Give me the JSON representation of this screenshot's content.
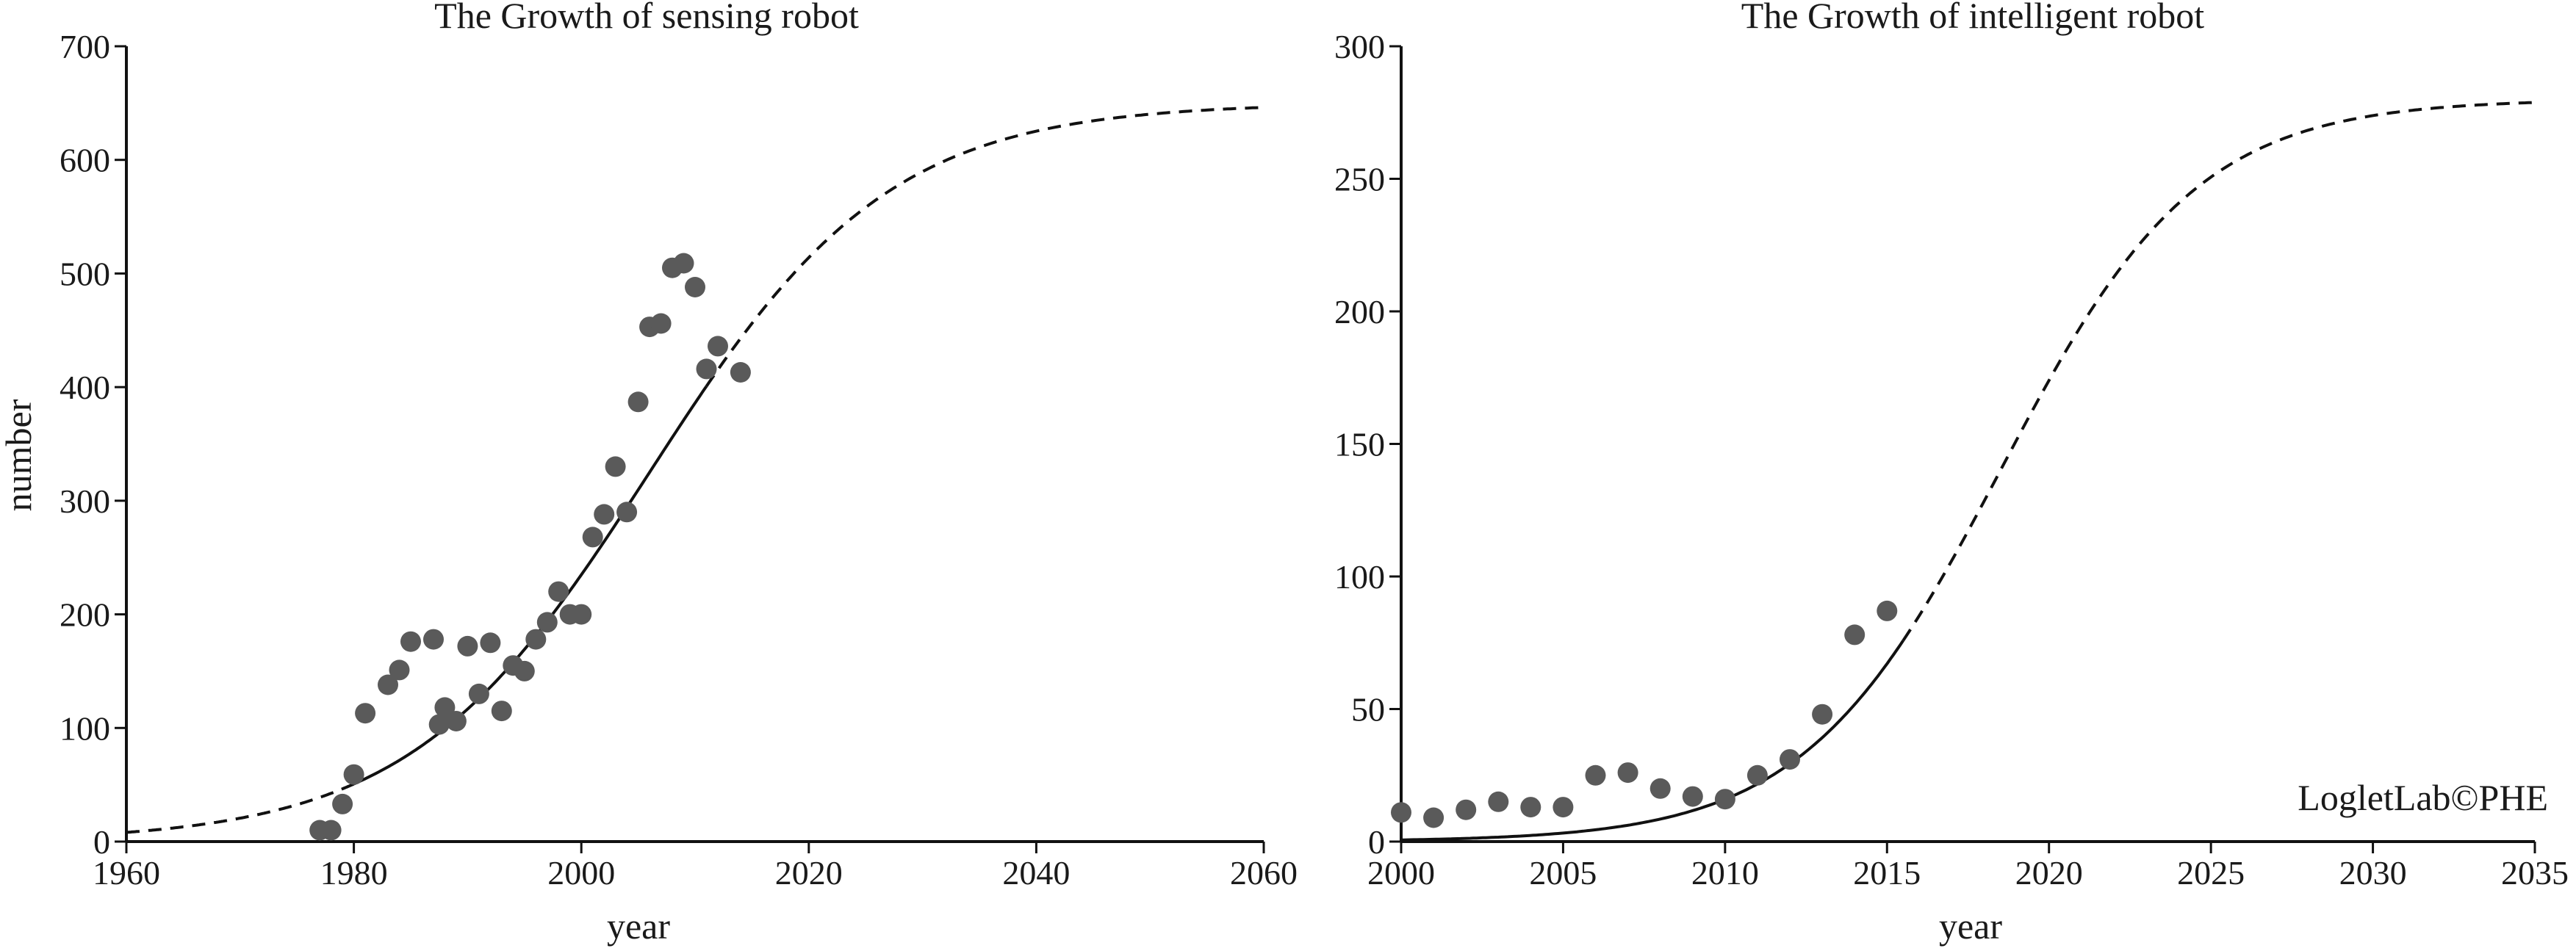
{
  "chart_data": [
    {
      "type": "scatter",
      "title": "The Growth of sensing robot",
      "xlabel": "year",
      "ylabel": "number",
      "xlim": [
        1960,
        2060
      ],
      "ylim": [
        0,
        700
      ],
      "xticks": [
        1960,
        1980,
        2000,
        2020,
        2040,
        2060
      ],
      "yticks": [
        0,
        100,
        200,
        300,
        400,
        500,
        600,
        700
      ],
      "xtick_labels": [
        "1960",
        "1980",
        "2000",
        "2020",
        "2040",
        "2060"
      ],
      "ytick_labels": [
        "0",
        "100",
        "200",
        "300",
        "400",
        "500",
        "600",
        "700"
      ],
      "grid": false,
      "series": [
        {
          "kind": "points",
          "x": [
            1977,
            1978,
            1979,
            1980,
            1981,
            1983,
            1984,
            1985,
            1987,
            1987.5,
            1988,
            1989,
            1990,
            1991,
            1992,
            1993,
            1994,
            1995,
            1996,
            1997,
            1998,
            1999,
            2000,
            2001,
            2002,
            2003,
            2004,
            2005,
            2006,
            2007,
            2008,
            2009,
            2010,
            2011,
            2012,
            2014
          ],
          "y": [
            10,
            10,
            33,
            59,
            113,
            138,
            151,
            176,
            178,
            103,
            118,
            106,
            172,
            130,
            175,
            115,
            155,
            150,
            178,
            193,
            220,
            200,
            200,
            268,
            288,
            330,
            290,
            387,
            453,
            456,
            505,
            509,
            488,
            416,
            436,
            413
          ]
        },
        {
          "kind": "fit",
          "label": "logistic fit",
          "style": "solid",
          "x_start": 1980,
          "x_end": 2011,
          "K": 650,
          "midpoint": 2006,
          "rate": 0.095
        },
        {
          "kind": "projection",
          "label": "logistic projection",
          "style": "dashed",
          "segments": [
            [
              1960,
              1980
            ],
            [
              2011,
              2060
            ]
          ],
          "K": 650,
          "midpoint": 2006,
          "rate": 0.095
        }
      ]
    },
    {
      "type": "scatter",
      "title": "The Growth of intelligent robot",
      "xlabel": "year",
      "ylabel": "",
      "xlim": [
        2000,
        2035
      ],
      "ylim": [
        0,
        300
      ],
      "xticks": [
        2000,
        2005,
        2010,
        2015,
        2020,
        2025,
        2030,
        2035
      ],
      "yticks": [
        0,
        50,
        100,
        150,
        200,
        250,
        300
      ],
      "xtick_labels": [
        "2000",
        "2005",
        "2010",
        "2015",
        "2020",
        "2025",
        "2030",
        "2035"
      ],
      "ytick_labels": [
        "0",
        "50",
        "100",
        "150",
        "200",
        "250",
        "300"
      ],
      "grid": false,
      "series": [
        {
          "kind": "points",
          "x": [
            2000,
            2001,
            2002,
            2003,
            2004,
            2005,
            2006,
            2007,
            2008,
            2009,
            2010,
            2011,
            2012,
            2013,
            2014,
            2015
          ],
          "y": [
            11,
            9,
            12,
            15,
            13,
            13,
            25,
            26,
            20,
            17,
            16,
            25,
            31,
            48,
            78,
            87
          ]
        },
        {
          "kind": "fit",
          "label": "logistic fit",
          "style": "solid",
          "x_start": 2000,
          "x_end": 2015.5,
          "K": 280,
          "midpoint": 2018.5,
          "rate": 0.33
        },
        {
          "kind": "projection",
          "label": "logistic projection",
          "style": "dashed",
          "segments": [
            [
              2015.5,
              2035
            ]
          ],
          "K": 280,
          "midpoint": 2018.5,
          "rate": 0.33
        }
      ],
      "watermark": "LogletLab©PHE"
    }
  ]
}
